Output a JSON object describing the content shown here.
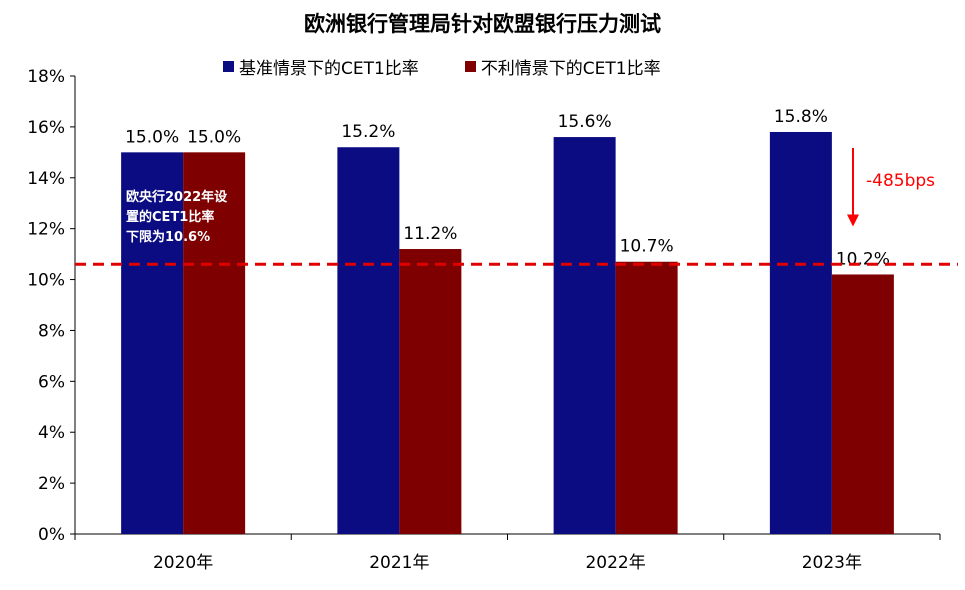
{
  "chart_data": {
    "type": "bar",
    "title": "欧洲银行管理局针对欧盟银行压力测试",
    "categories": [
      "2020年",
      "2021年",
      "2022年",
      "2023年"
    ],
    "series": [
      {
        "name": "基准情景下的CET1比率",
        "values": [
          15.0,
          15.2,
          15.6,
          15.8
        ],
        "labels": [
          "15.0%",
          "15.2%",
          "15.6%",
          "15.8%"
        ],
        "color": "#0b0b82"
      },
      {
        "name": "不利情景下的CET1比率",
        "values": [
          15.0,
          11.2,
          10.7,
          10.2
        ],
        "labels": [
          "15.0%",
          "11.2%",
          "10.7%",
          "10.2%"
        ],
        "color": "#7f0000"
      }
    ],
    "yticks": [
      "0%",
      "2%",
      "4%",
      "6%",
      "8%",
      "10%",
      "12%",
      "14%",
      "16%",
      "18%"
    ],
    "ylim": [
      0,
      18
    ],
    "reference_line": {
      "value": 10.6,
      "color": "#e00000",
      "style": "dashed"
    },
    "annotations": {
      "floor_note": "欧央行2022年设\n置的CET1比率\n下限为10.6%",
      "drop": "-485bps",
      "drop_color": "#ff0000"
    },
    "legend_position": "top",
    "grid": false
  }
}
